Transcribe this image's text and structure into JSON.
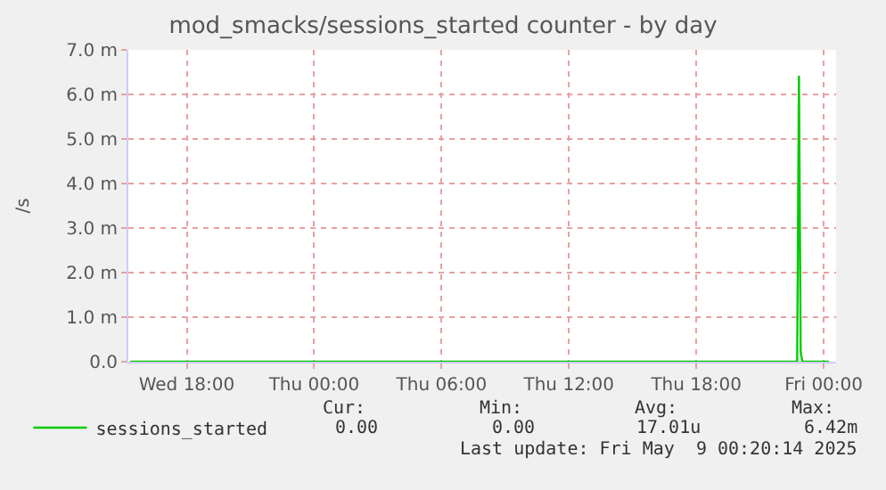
{
  "chart_data": {
    "type": "line",
    "title": "mod_smacks/sessions_started counter - by day",
    "ylabel": "/s",
    "x": [
      "2025-05-07T15:20",
      "2025-05-08T22:45",
      "2025-05-08T22:50",
      "2025-05-08T22:55",
      "2025-05-08T23:00",
      "2025-05-09T00:15"
    ],
    "series": [
      {
        "name": "sessions_started",
        "color": "#00cc00",
        "values": [
          0,
          0,
          6.42,
          0.2,
          0,
          0
        ]
      }
    ],
    "xlim": [
      "2025-05-07T15:15",
      "2025-05-09T00:35"
    ],
    "xticks": [
      {
        "value": "2025-05-07T18:00",
        "label": "Wed 18:00"
      },
      {
        "value": "2025-05-08T00:00",
        "label": "Thu 00:00"
      },
      {
        "value": "2025-05-08T06:00",
        "label": "Thu 06:00"
      },
      {
        "value": "2025-05-08T12:00",
        "label": "Thu 12:00"
      },
      {
        "value": "2025-05-08T18:00",
        "label": "Thu 18:00"
      },
      {
        "value": "2025-05-09T00:00",
        "label": "Fri 00:00"
      }
    ],
    "ylim": [
      0,
      7
    ],
    "yticks": [
      {
        "value": 0,
        "label": "0.0"
      },
      {
        "value": 1,
        "label": "1.0 m"
      },
      {
        "value": 2,
        "label": "2.0 m"
      },
      {
        "value": 3,
        "label": "3.0 m"
      },
      {
        "value": 4,
        "label": "4.0 m"
      },
      {
        "value": 5,
        "label": "5.0 m"
      },
      {
        "value": 6,
        "label": "6.0 m"
      },
      {
        "value": 7,
        "label": "7.0 m"
      }
    ],
    "grid": true,
    "legend": "bottom left",
    "marker": "none",
    "line_style": "solid",
    "annotations": [
      "Cur:",
      "Min:",
      "Avg:",
      "Max:",
      "0.00",
      "0.00",
      "17.01u",
      "6.42m",
      "Last update: Fri May  9 00:20:14 2025"
    ]
  }
}
